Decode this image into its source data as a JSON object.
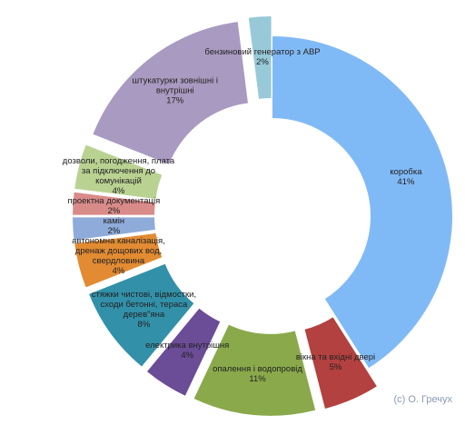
{
  "chart_data": {
    "type": "donut",
    "categories": [
      "коробка",
      "вікна та вхідні двері",
      "опалення і водопровід",
      "електрика внутрішня",
      "стяжки чистові, відмостки, сходи бетонні, тераса дерев\"яна",
      "автономна каналізація, дренаж дощових вод, свердловина",
      "камін",
      "проектна документація",
      "дозволи, погодження, плата за підключення до комунікацій",
      "штукатурки зовнішні і внутрішні",
      "бензиновий генератор з АВР"
    ],
    "values": [
      41,
      5,
      11,
      4,
      8,
      4,
      2,
      2,
      4,
      17,
      2
    ],
    "value_labels": [
      "41%",
      "5%",
      "11%",
      "4%",
      "8%",
      "4%",
      "2%",
      "2%",
      "4%",
      "17%",
      "2%"
    ],
    "colors": [
      "#80baf6",
      "#b3413f",
      "#8aa94b",
      "#6b4c97",
      "#3290a9",
      "#e28b32",
      "#8fabd9",
      "#d98b8a",
      "#b9d292",
      "#a99ac1",
      "#98c9d9"
    ],
    "credit": "(с) О. Гречух"
  }
}
